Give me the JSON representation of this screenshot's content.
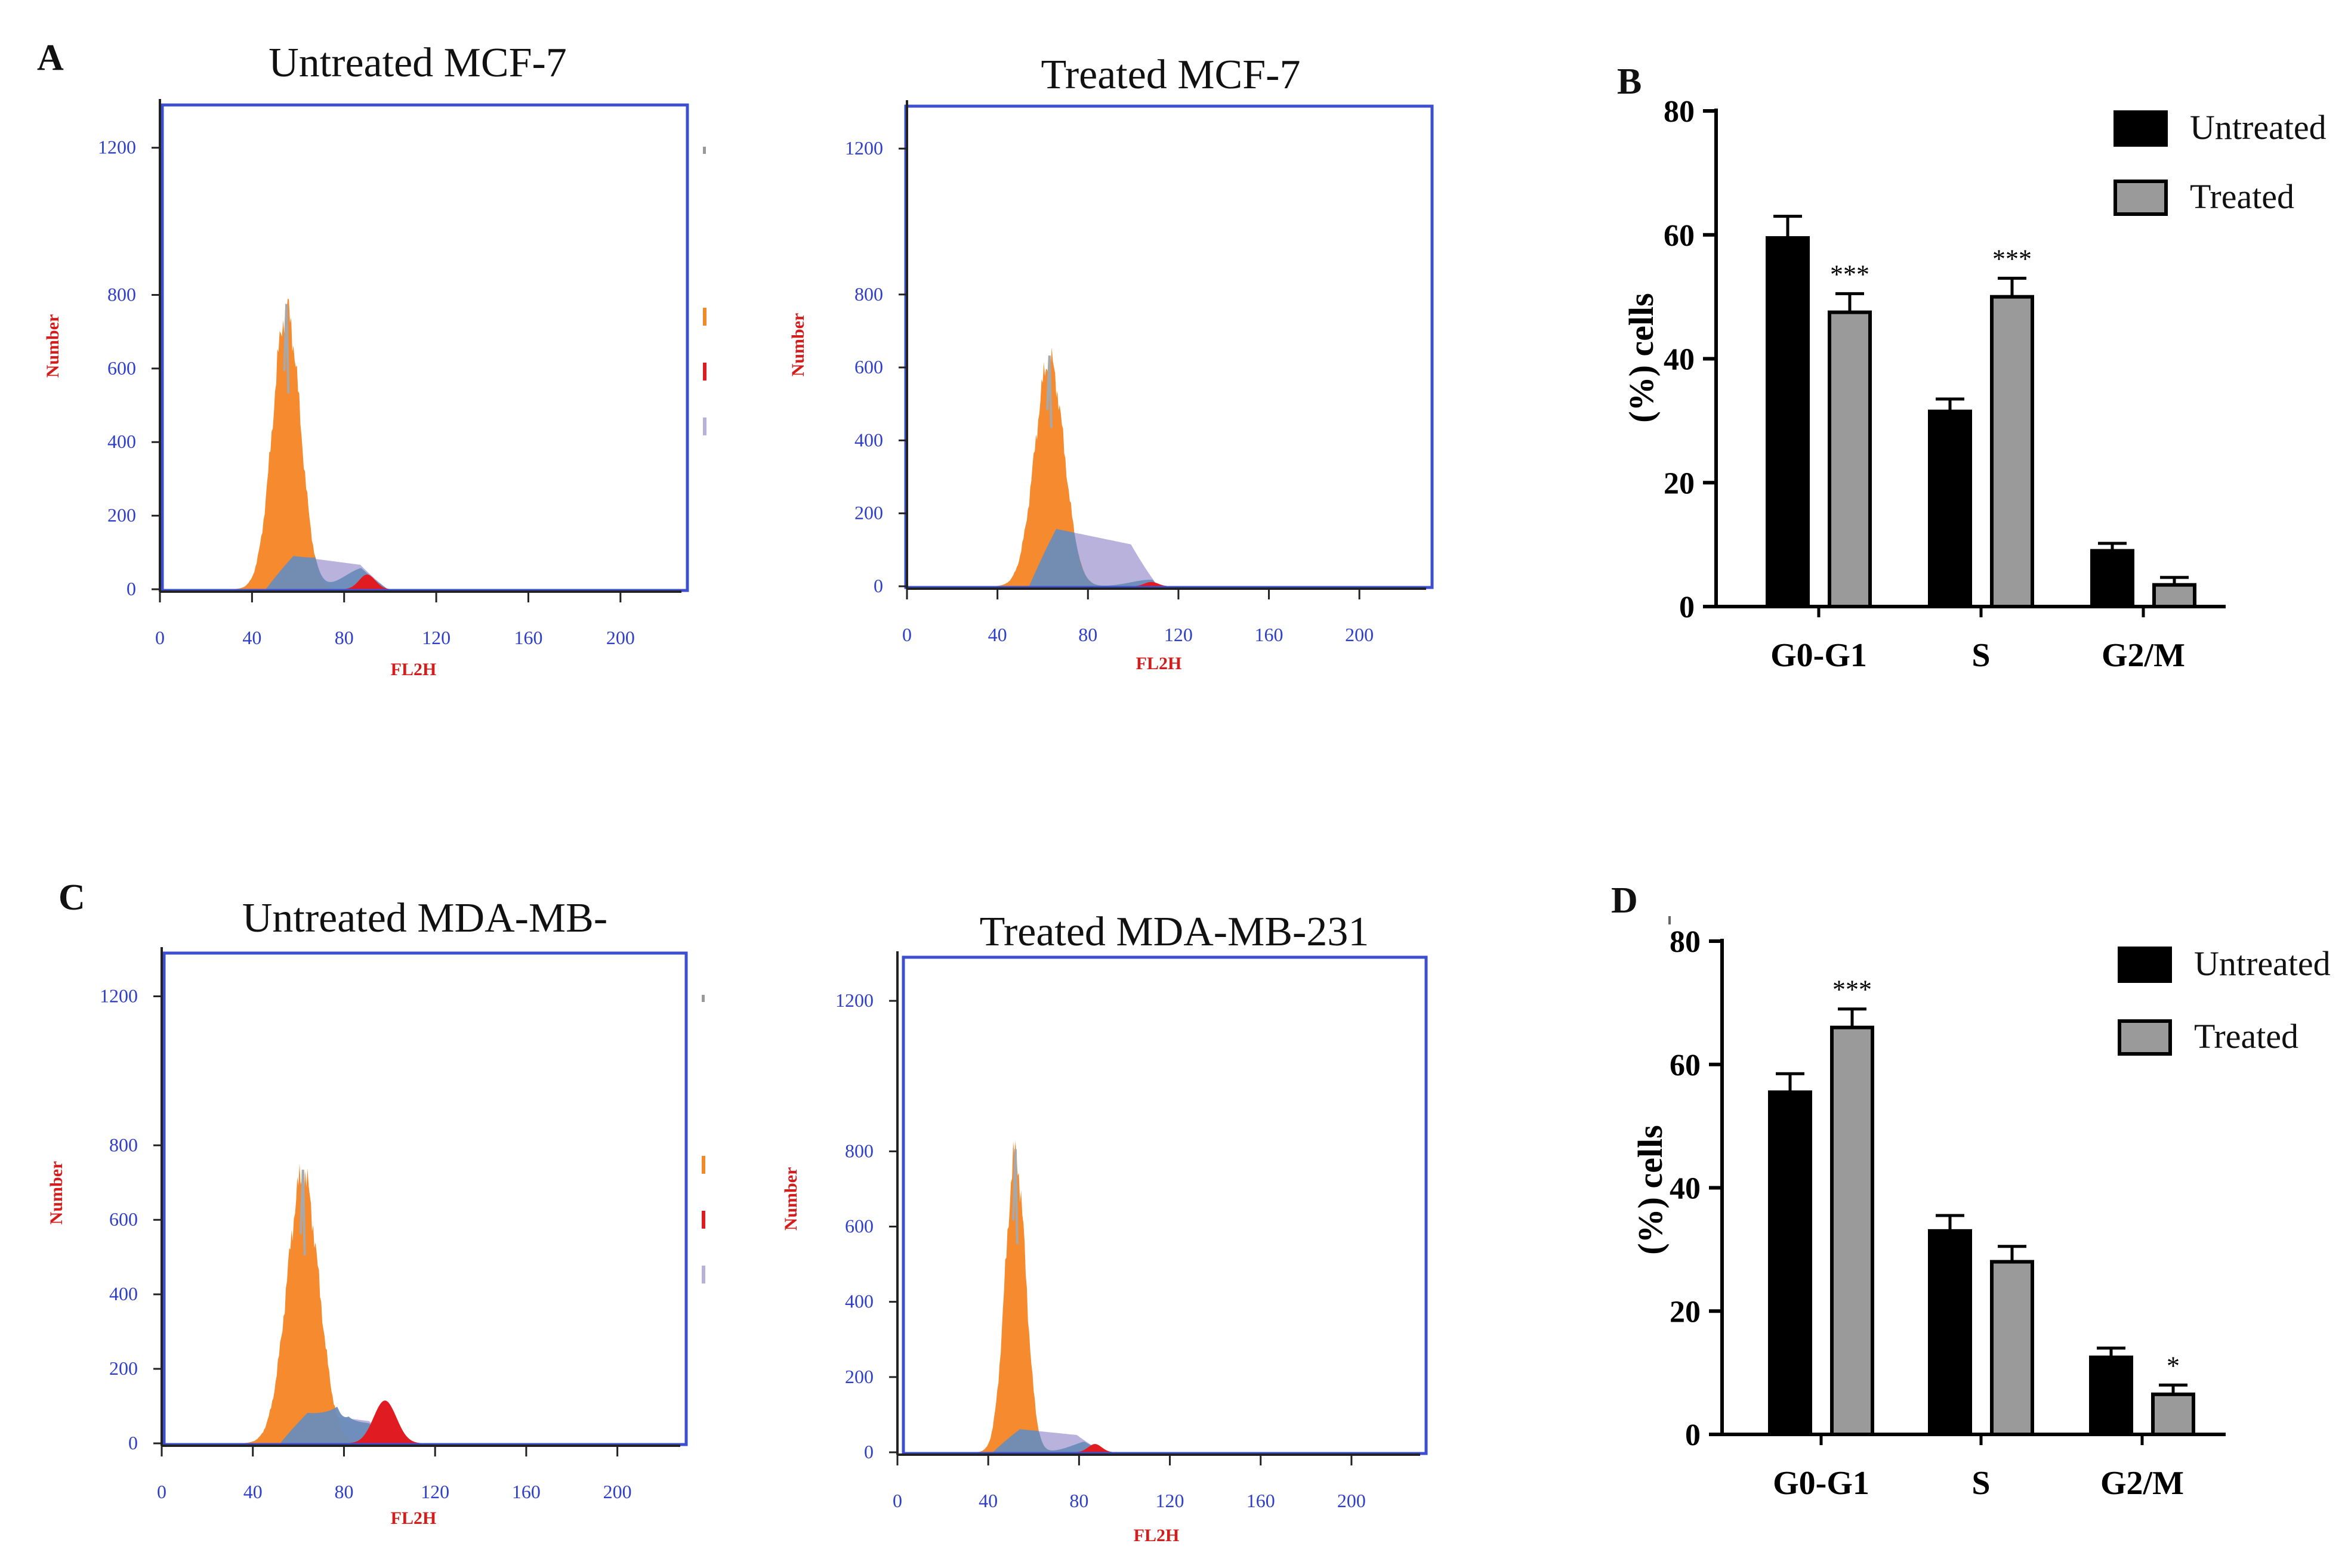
{
  "panels": {
    "A": {
      "letter": "A"
    },
    "B": {
      "letter": "B"
    },
    "C": {
      "letter": "C"
    },
    "D": {
      "letter": "D"
    }
  },
  "chart_data": [
    {
      "id": "A-untreated",
      "type": "histogram",
      "title": "Untreated MCF-7",
      "xlabel": "FL2H",
      "ylabel": "Number",
      "xticks": [
        0,
        40,
        80,
        120,
        160,
        200
      ],
      "yticks": [
        0,
        200,
        400,
        600,
        800,
        1200
      ],
      "xlim": [
        0,
        220
      ],
      "ylim": [
        0,
        1300
      ],
      "legend_color_swatches": [
        "#f08a2a",
        "#dc1e24",
        "#b6b2d8"
      ],
      "components": [
        {
          "name": "G0/G1",
          "color": "#f58a2e",
          "mu": 55,
          "sigma": 6.0,
          "peak": 760
        },
        {
          "name": "S",
          "color": "#b8b2dc",
          "from": 52,
          "to": 93,
          "level": 95
        },
        {
          "name": "G2/M",
          "color": "#e01b22",
          "mu": 90,
          "sigma": 3.5,
          "peak": 40
        }
      ]
    },
    {
      "id": "A-treated",
      "type": "histogram",
      "title": "Treated MCF-7",
      "xlabel": "FL2H",
      "ylabel": "Number",
      "xticks": [
        0,
        40,
        80,
        120,
        160,
        200
      ],
      "yticks": [
        0,
        200,
        400,
        600,
        800,
        1200
      ],
      "xlim": [
        0,
        220
      ],
      "ylim": [
        0,
        1300
      ],
      "components": [
        {
          "name": "G0/G1",
          "color": "#f58a2e",
          "mu": 63,
          "sigma": 6.5,
          "peak": 620
        },
        {
          "name": "S",
          "color": "#b8b2dc",
          "from": 60,
          "to": 105,
          "level": 165
        },
        {
          "name": "G2/M",
          "color": "#e01b22",
          "mu": 108,
          "sigma": 3.0,
          "peak": 12
        }
      ]
    },
    {
      "id": "B",
      "type": "bar",
      "xlabel": "",
      "ylabel": "(%) cells",
      "categories": [
        "G0-G1",
        "S",
        "G2/M"
      ],
      "yticks": [
        0,
        20,
        40,
        60,
        80
      ],
      "ylim": [
        0,
        80
      ],
      "series": [
        {
          "name": "Untreated",
          "color": "#000000",
          "values": [
            59.5,
            31.5,
            9.0
          ],
          "errors": [
            3.5,
            2.0,
            1.2
          ]
        },
        {
          "name": "Treated",
          "color": "#9a9a9a",
          "values": [
            47.5,
            50.0,
            3.5
          ],
          "errors": [
            3.0,
            3.0,
            1.2
          ]
        }
      ],
      "significance": [
        "***",
        "***",
        ""
      ],
      "legend_position": "top-right"
    },
    {
      "id": "C-untreated",
      "type": "histogram",
      "title": "Untreated MDA-MB-",
      "xlabel": "FL2H",
      "ylabel": "Number",
      "xticks": [
        0,
        40,
        80,
        120,
        160,
        200
      ],
      "yticks": [
        0,
        200,
        400,
        600,
        800,
        1200
      ],
      "xlim": [
        0,
        220
      ],
      "ylim": [
        0,
        1300
      ],
      "legend_color_swatches": [
        "#f08a2a",
        "#dc1e24",
        "#b6b2d8"
      ],
      "components": [
        {
          "name": "G0/G1",
          "color": "#f58a2e",
          "mu": 62,
          "sigma": 7.0,
          "peak": 720
        },
        {
          "name": "S",
          "color": "#b8b2dc",
          "from": 58,
          "to": 97,
          "level": 85
        },
        {
          "name": "G2/M",
          "color": "#e01b22",
          "mu": 98,
          "sigma": 5.0,
          "peak": 115
        }
      ]
    },
    {
      "id": "C-treated",
      "type": "histogram",
      "title": "Treated MDA-MB-231",
      "xlabel": "FL2H",
      "ylabel": "Number",
      "xticks": [
        0,
        40,
        80,
        120,
        160,
        200
      ],
      "yticks": [
        0,
        200,
        400,
        600,
        800,
        1200
      ],
      "xlim": [
        0,
        220
      ],
      "ylim": [
        0,
        1300
      ],
      "components": [
        {
          "name": "G0/G1",
          "color": "#f58a2e",
          "mu": 52,
          "sigma": 4.5,
          "peak": 790
        },
        {
          "name": "S",
          "color": "#b8b2dc",
          "from": 48,
          "to": 85,
          "level": 65
        },
        {
          "name": "G2/M",
          "color": "#e01b22",
          "mu": 87,
          "sigma": 3.0,
          "peak": 22
        }
      ]
    },
    {
      "id": "D",
      "type": "bar",
      "xlabel": "",
      "ylabel": "(%) cells",
      "categories": [
        "G0-G1",
        "S",
        "G2/M"
      ],
      "yticks": [
        0,
        20,
        40,
        60,
        80
      ],
      "ylim": [
        0,
        80
      ],
      "series": [
        {
          "name": "Untreated",
          "color": "#000000",
          "values": [
            55.5,
            33.0,
            12.5
          ],
          "errors": [
            3.0,
            2.5,
            1.5
          ]
        },
        {
          "name": "Treated",
          "color": "#9a9a9a",
          "values": [
            66.0,
            28.0,
            6.5
          ],
          "errors": [
            3.0,
            2.5,
            1.5
          ]
        }
      ],
      "significance": [
        "***",
        "",
        "*"
      ],
      "legend_position": "top-right"
    }
  ]
}
